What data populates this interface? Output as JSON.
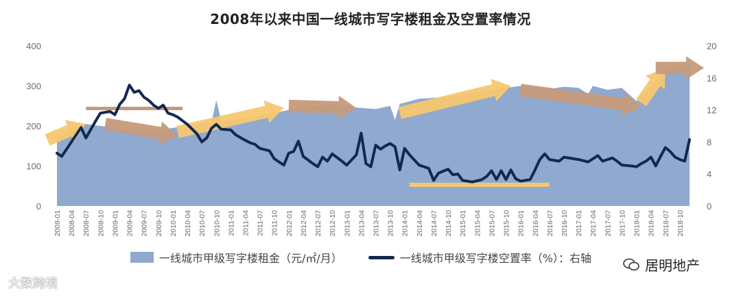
{
  "title": "2008年以来中国一线城市写字楼租金及空置率情况",
  "colors": {
    "area": "#8fa9cf",
    "line": "#13284f",
    "arrow_yellow": "#f6c76f",
    "arrow_brown": "#c69a7a",
    "bar_brown": "#c69a7a",
    "bar_yellow": "#f6c76f"
  },
  "chart_data": {
    "type": "area",
    "title": "2008年以来中国一线城市写字楼租金及空置率情况",
    "x_ticks": [
      "2008-01",
      "2008-04",
      "2008-07",
      "2008-10",
      "2009-01",
      "2009-04",
      "2009-07",
      "2009-10",
      "2010-01",
      "2010-04",
      "2010-07",
      "2010-10",
      "2011-01",
      "2011-04",
      "2011-07",
      "2011-10",
      "2012-01",
      "2012-04",
      "2012-07",
      "2012-10",
      "2013-01",
      "2013-04",
      "2013-07",
      "2013-10",
      "2014-01",
      "2014-04",
      "2014-07",
      "2014-10",
      "2015-01",
      "2015-04",
      "2015-07",
      "2015-10",
      "2016-01",
      "2016-04",
      "2016-07",
      "2016-10",
      "2017-01",
      "2017-04",
      "2017-07",
      "2017-10",
      "2018-01",
      "2018-04",
      "2018-07",
      "2018-10"
    ],
    "y_left": {
      "range": [
        0,
        400
      ],
      "ticks": [
        "0",
        "100",
        "200",
        "300",
        "400"
      ]
    },
    "y_right": {
      "range": [
        0,
        20
      ],
      "ticks": [
        "0",
        "4",
        "8",
        "12",
        "16",
        "20"
      ]
    },
    "grid": false,
    "legend_position": "bottom",
    "series": [
      {
        "name": "一线城市甲级写字楼租金（元/㎡/月）",
        "kind": "area",
        "axis": "left",
        "points": [
          [
            "2008-01",
            165
          ],
          [
            "2008-04",
            195
          ],
          [
            "2008-07",
            205
          ],
          [
            "2008-10",
            200
          ],
          [
            "2009-01",
            195
          ],
          [
            "2009-04",
            188
          ],
          [
            "2009-07",
            182
          ],
          [
            "2009-10",
            188
          ],
          [
            "2010-01",
            195
          ],
          [
            "2010-04",
            200
          ],
          [
            "2010-07",
            205
          ],
          [
            "2010-09",
            208
          ],
          [
            "2010-10",
            265
          ],
          [
            "2010-11",
            212
          ],
          [
            "2011-01",
            215
          ],
          [
            "2011-04",
            220
          ],
          [
            "2011-07",
            225
          ],
          [
            "2011-10",
            232
          ],
          [
            "2012-01",
            240
          ],
          [
            "2012-04",
            245
          ],
          [
            "2012-07",
            250
          ],
          [
            "2012-10",
            255
          ],
          [
            "2013-01",
            248
          ],
          [
            "2013-04",
            245
          ],
          [
            "2013-07",
            242
          ],
          [
            "2013-10",
            250
          ],
          [
            "2013-11",
            215
          ],
          [
            "2013-12",
            255
          ],
          [
            "2014-01",
            258
          ],
          [
            "2014-04",
            268
          ],
          [
            "2014-07",
            270
          ],
          [
            "2014-10",
            272
          ],
          [
            "2015-01",
            278
          ],
          [
            "2015-04",
            285
          ],
          [
            "2015-07",
            290
          ],
          [
            "2015-10",
            295
          ],
          [
            "2016-01",
            300
          ],
          [
            "2016-04",
            295
          ],
          [
            "2016-07",
            292
          ],
          [
            "2016-10",
            298
          ],
          [
            "2017-01",
            295
          ],
          [
            "2017-03",
            280
          ],
          [
            "2017-04",
            300
          ],
          [
            "2017-07",
            290
          ],
          [
            "2017-10",
            295
          ],
          [
            "2018-01",
            262
          ],
          [
            "2018-04",
            300
          ],
          [
            "2018-07",
            340
          ],
          [
            "2018-10",
            345
          ],
          [
            "2018-12",
            350
          ]
        ]
      },
      {
        "name": "一线城市甲级写字楼空置率（%）：右轴",
        "kind": "line",
        "axis": "right",
        "points": [
          [
            "2008-01",
            6.6
          ],
          [
            "2008-02",
            6.2
          ],
          [
            "2008-04",
            8
          ],
          [
            "2008-06",
            9.8
          ],
          [
            "2008-07",
            8.5
          ],
          [
            "2008-09",
            10.6
          ],
          [
            "2008-10",
            11.6
          ],
          [
            "2008-12",
            11.8
          ],
          [
            "2009-01",
            11.4
          ],
          [
            "2009-02",
            12.7
          ],
          [
            "2009-03",
            13.4
          ],
          [
            "2009-04",
            15.1
          ],
          [
            "2009-05",
            14.2
          ],
          [
            "2009-06",
            14.4
          ],
          [
            "2009-07",
            13.6
          ],
          [
            "2009-08",
            13.2
          ],
          [
            "2009-09",
            12.6
          ],
          [
            "2009-10",
            12.2
          ],
          [
            "2009-11",
            12.6
          ],
          [
            "2009-12",
            11.6
          ],
          [
            "2010-01",
            11.4
          ],
          [
            "2010-02",
            11.1
          ],
          [
            "2010-04",
            10.2
          ],
          [
            "2010-06",
            9
          ],
          [
            "2010-07",
            8
          ],
          [
            "2010-08",
            8.5
          ],
          [
            "2010-09",
            9.7
          ],
          [
            "2010-10",
            10.2
          ],
          [
            "2010-11",
            9.6
          ],
          [
            "2011-01",
            9.5
          ],
          [
            "2011-02",
            8.9
          ],
          [
            "2011-04",
            8.2
          ],
          [
            "2011-05",
            7.9
          ],
          [
            "2011-06",
            7.7
          ],
          [
            "2011-07",
            7.2
          ],
          [
            "2011-09",
            6.9
          ],
          [
            "2011-10",
            5.9
          ],
          [
            "2011-12",
            5.1
          ],
          [
            "2012-01",
            6.6
          ],
          [
            "2012-02",
            6.8
          ],
          [
            "2012-03",
            8.1
          ],
          [
            "2012-04",
            6.2
          ],
          [
            "2012-06",
            5.3
          ],
          [
            "2012-07",
            4.9
          ],
          [
            "2012-08",
            6.1
          ],
          [
            "2012-09",
            5.6
          ],
          [
            "2012-10",
            6.5
          ],
          [
            "2012-12",
            5.6
          ],
          [
            "2013-01",
            5.1
          ],
          [
            "2013-03",
            6.4
          ],
          [
            "2013-04",
            9.1
          ],
          [
            "2013-05",
            5.3
          ],
          [
            "2013-06",
            4.9
          ],
          [
            "2013-07",
            7.6
          ],
          [
            "2013-08",
            7.1
          ],
          [
            "2013-09",
            7.5
          ],
          [
            "2013-10",
            7.8
          ],
          [
            "2013-11",
            7.4
          ],
          [
            "2013-12",
            4.5
          ],
          [
            "2014-01",
            7.2
          ],
          [
            "2014-02",
            6.4
          ],
          [
            "2014-04",
            5.1
          ],
          [
            "2014-06",
            4.7
          ],
          [
            "2014-07",
            3.2
          ],
          [
            "2014-08",
            4.1
          ],
          [
            "2014-10",
            4.6
          ],
          [
            "2014-11",
            3.9
          ],
          [
            "2014-12",
            4
          ],
          [
            "2015-01",
            3.2
          ],
          [
            "2015-03",
            3
          ],
          [
            "2015-05",
            3.3
          ],
          [
            "2015-06",
            3.7
          ],
          [
            "2015-07",
            4.4
          ],
          [
            "2015-08",
            3.3
          ],
          [
            "2015-09",
            4.4
          ],
          [
            "2015-10",
            3.3
          ],
          [
            "2015-11",
            4.5
          ],
          [
            "2015-12",
            3.4
          ],
          [
            "2016-01",
            3.1
          ],
          [
            "2016-03",
            3.3
          ],
          [
            "2016-04",
            4.5
          ],
          [
            "2016-05",
            5.8
          ],
          [
            "2016-06",
            6.5
          ],
          [
            "2016-07",
            5.8
          ],
          [
            "2016-09",
            5.6
          ],
          [
            "2016-10",
            6.1
          ],
          [
            "2016-12",
            5.9
          ],
          [
            "2017-01",
            5.8
          ],
          [
            "2017-03",
            5.5
          ],
          [
            "2017-04",
            5.9
          ],
          [
            "2017-05",
            6.3
          ],
          [
            "2017-06",
            5.6
          ],
          [
            "2017-07",
            5.8
          ],
          [
            "2017-08",
            6
          ],
          [
            "2017-09",
            5.6
          ],
          [
            "2017-10",
            5.1
          ],
          [
            "2017-12",
            5
          ],
          [
            "2018-01",
            4.9
          ],
          [
            "2018-02",
            5.3
          ],
          [
            "2018-03",
            5.6
          ],
          [
            "2018-04",
            6.1
          ],
          [
            "2018-05",
            5
          ],
          [
            "2018-06",
            6.2
          ],
          [
            "2018-07",
            7.3
          ],
          [
            "2018-08",
            6.8
          ],
          [
            "2018-09",
            6.1
          ],
          [
            "2018-10",
            5.8
          ],
          [
            "2018-11",
            5.6
          ],
          [
            "2018-12",
            8.3
          ]
        ]
      }
    ]
  },
  "legend": {
    "area_label": "一线城市甲级写字楼租金（元/㎡/月）",
    "line_label": "一线城市甲级写字楼空置率（%）：右轴"
  },
  "watermarks": {
    "left": "大数跨境",
    "right": "居明地产"
  }
}
